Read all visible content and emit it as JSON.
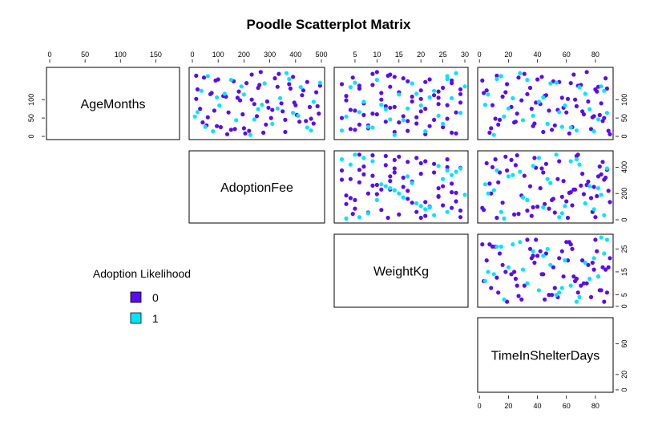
{
  "title": "Poodle Scatterplot Matrix",
  "legend": {
    "title": "Adoption Likelihood",
    "entries": [
      "0",
      "1"
    ]
  },
  "colors": {
    "0": "#5a0cf0",
    "1": "#00e5ff"
  },
  "chart_data": {
    "type": "scatter",
    "title": "Poodle Scatterplot Matrix",
    "subtype": "scatterplot-matrix (upper panels only)",
    "variables": [
      "AgeMonths",
      "AdoptionFee",
      "WeightKg",
      "TimeInShelterDays"
    ],
    "group_variable": "Adoption Likelihood",
    "groups": [
      "0",
      "1"
    ],
    "ranges": {
      "AgeMonths": [
        0,
        179
      ],
      "AdoptionFee": [
        0,
        500
      ],
      "WeightKg": [
        1,
        30
      ],
      "TimeInShelterDays": [
        1,
        90
      ]
    },
    "ticks": {
      "AgeMonths": [
        0,
        50,
        100,
        150
      ],
      "AdoptionFee": [
        0,
        100,
        200,
        300,
        400,
        500
      ],
      "WeightKg": [
        0,
        5,
        10,
        15,
        20,
        25,
        30
      ],
      "TimeInShelterDays": [
        0,
        20,
        40,
        60,
        80
      ]
    },
    "left_axis_ticks": {
      "AgeMonths": [
        0,
        50,
        100
      ],
      "AdoptionFee": [
        0,
        200,
        400
      ],
      "WeightKg": [
        0,
        5,
        15,
        25
      ],
      "TimeInShelterDays": [
        0,
        20,
        60
      ]
    },
    "legend_position": "left, lower-left empty region",
    "grid": false,
    "observations": [
      {
        "AgeMonths": 165,
        "AdoptionFee": 15,
        "WeightKg": 12.5,
        "TimeInShelterDays": 12,
        "group": "0"
      },
      {
        "AgeMonths": 160,
        "AdoptionFee": 45,
        "WeightKg": 4.5,
        "TimeInShelterDays": 27,
        "group": "0"
      },
      {
        "AgeMonths": 155,
        "AdoptionFee": 100,
        "WeightKg": 22,
        "TimeInShelterDays": 40,
        "group": "0"
      },
      {
        "AgeMonths": 150,
        "AdoptionFee": 160,
        "WeightKg": 17,
        "TimeInShelterDays": 51,
        "group": "0"
      },
      {
        "AgeMonths": 145,
        "AdoptionFee": 210,
        "WeightKg": 27,
        "TimeInShelterDays": 63,
        "group": "0"
      },
      {
        "AgeMonths": 140,
        "AdoptionFee": 260,
        "WeightKg": 9,
        "TimeInShelterDays": 70,
        "group": "0"
      },
      {
        "AgeMonths": 135,
        "AdoptionFee": 330,
        "WeightKg": 13,
        "TimeInShelterDays": 82,
        "group": "0"
      },
      {
        "AgeMonths": 130,
        "AdoptionFee": 380,
        "WeightKg": 6,
        "TimeInShelterDays": 88,
        "group": "0"
      },
      {
        "AgeMonths": 125,
        "AdoptionFee": 430,
        "WeightKg": 20,
        "TimeInShelterDays": 5,
        "group": "0"
      },
      {
        "AgeMonths": 120,
        "AdoptionFee": 480,
        "WeightKg": 15,
        "TimeInShelterDays": 18,
        "group": "0"
      },
      {
        "AgeMonths": 115,
        "AdoptionFee": 70,
        "WeightKg": 29,
        "TimeInShelterDays": 33,
        "group": "0"
      },
      {
        "AgeMonths": 110,
        "AdoptionFee": 120,
        "WeightKg": 3,
        "TimeInShelterDays": 45,
        "group": "0"
      },
      {
        "AgeMonths": 105,
        "AdoptionFee": 175,
        "WeightKg": 24,
        "TimeInShelterDays": 57,
        "group": "0"
      },
      {
        "AgeMonths": 100,
        "AdoptionFee": 230,
        "WeightKg": 11,
        "TimeInShelterDays": 66,
        "group": "0"
      },
      {
        "AgeMonths": 95,
        "AdoptionFee": 290,
        "WeightKg": 18,
        "TimeInShelterDays": 75,
        "group": "0"
      },
      {
        "AgeMonths": 90,
        "AdoptionFee": 345,
        "WeightKg": 7,
        "TimeInShelterDays": 84,
        "group": "0"
      },
      {
        "AgeMonths": 85,
        "AdoptionFee": 400,
        "WeightKg": 26,
        "TimeInShelterDays": 9,
        "group": "0"
      },
      {
        "AgeMonths": 80,
        "AdoptionFee": 455,
        "WeightKg": 14,
        "TimeInShelterDays": 22,
        "group": "0"
      },
      {
        "AgeMonths": 75,
        "AdoptionFee": 30,
        "WeightKg": 21,
        "TimeInShelterDays": 36,
        "group": "0"
      },
      {
        "AgeMonths": 70,
        "AdoptionFee": 85,
        "WeightKg": 5,
        "TimeInShelterDays": 48,
        "group": "0"
      },
      {
        "AgeMonths": 65,
        "AdoptionFee": 140,
        "WeightKg": 28,
        "TimeInShelterDays": 60,
        "group": "0"
      },
      {
        "AgeMonths": 60,
        "AdoptionFee": 195,
        "WeightKg": 10,
        "TimeInShelterDays": 72,
        "group": "0"
      },
      {
        "AgeMonths": 55,
        "AdoptionFee": 250,
        "WeightKg": 16,
        "TimeInShelterDays": 79,
        "group": "0"
      },
      {
        "AgeMonths": 50,
        "AdoptionFee": 305,
        "WeightKg": 2,
        "TimeInShelterDays": 86,
        "group": "0"
      },
      {
        "AgeMonths": 45,
        "AdoptionFee": 360,
        "WeightKg": 23,
        "TimeInShelterDays": 14,
        "group": "0"
      },
      {
        "AgeMonths": 40,
        "AdoptionFee": 415,
        "WeightKg": 12,
        "TimeInShelterDays": 25,
        "group": "0"
      },
      {
        "AgeMonths": 35,
        "AdoptionFee": 470,
        "WeightKg": 19,
        "TimeInShelterDays": 38,
        "group": "0"
      },
      {
        "AgeMonths": 30,
        "AdoptionFee": 55,
        "WeightKg": 8,
        "TimeInShelterDays": 52,
        "group": "0"
      },
      {
        "AgeMonths": 25,
        "AdoptionFee": 110,
        "WeightKg": 25,
        "TimeInShelterDays": 64,
        "group": "0"
      },
      {
        "AgeMonths": 20,
        "AdoptionFee": 165,
        "WeightKg": 4,
        "TimeInShelterDays": 77,
        "group": "0"
      },
      {
        "AgeMonths": 15,
        "AdoptionFee": 220,
        "WeightKg": 17,
        "TimeInShelterDays": 89,
        "group": "0"
      },
      {
        "AgeMonths": 10,
        "AdoptionFee": 275,
        "WeightKg": 27,
        "TimeInShelterDays": 7,
        "group": "0"
      },
      {
        "AgeMonths": 170,
        "AdoptionFee": 335,
        "WeightKg": 9,
        "TimeInShelterDays": 31,
        "group": "0"
      },
      {
        "AgeMonths": 162,
        "AdoptionFee": 390,
        "WeightKg": 14,
        "TimeInShelterDays": 43,
        "group": "0"
      },
      {
        "AgeMonths": 148,
        "AdoptionFee": 445,
        "WeightKg": 21,
        "TimeInShelterDays": 55,
        "group": "0"
      },
      {
        "AgeMonths": 138,
        "AdoptionFee": 495,
        "WeightKg": 6,
        "TimeInShelterDays": 68,
        "group": "0"
      },
      {
        "AgeMonths": 128,
        "AdoptionFee": 20,
        "WeightKg": 29,
        "TimeInShelterDays": 80,
        "group": "0"
      },
      {
        "AgeMonths": 118,
        "AdoptionFee": 75,
        "WeightKg": 11,
        "TimeInShelterDays": 3,
        "group": "0"
      },
      {
        "AgeMonths": 108,
        "AdoptionFee": 130,
        "WeightKg": 18,
        "TimeInShelterDays": 16,
        "group": "0"
      },
      {
        "AgeMonths": 98,
        "AdoptionFee": 185,
        "WeightKg": 3,
        "TimeInShelterDays": 29,
        "group": "0"
      },
      {
        "AgeMonths": 88,
        "AdoptionFee": 240,
        "WeightKg": 24,
        "TimeInShelterDays": 42,
        "group": "0"
      },
      {
        "AgeMonths": 78,
        "AdoptionFee": 295,
        "WeightKg": 13,
        "TimeInShelterDays": 58,
        "group": "0"
      },
      {
        "AgeMonths": 68,
        "AdoptionFee": 350,
        "WeightKg": 20,
        "TimeInShelterDays": 71,
        "group": "0"
      },
      {
        "AgeMonths": 58,
        "AdoptionFee": 405,
        "WeightKg": 7,
        "TimeInShelterDays": 83,
        "group": "0"
      },
      {
        "AgeMonths": 48,
        "AdoptionFee": 460,
        "WeightKg": 26,
        "TimeInShelterDays": 11,
        "group": "0"
      },
      {
        "AgeMonths": 38,
        "AdoptionFee": 40,
        "WeightKg": 15,
        "TimeInShelterDays": 24,
        "group": "0"
      },
      {
        "AgeMonths": 28,
        "AdoptionFee": 95,
        "WeightKg": 22,
        "TimeInShelterDays": 37,
        "group": "0"
      },
      {
        "AgeMonths": 18,
        "AdoptionFee": 150,
        "WeightKg": 5,
        "TimeInShelterDays": 50,
        "group": "0"
      },
      {
        "AgeMonths": 8,
        "AdoptionFee": 205,
        "WeightKg": 28,
        "TimeInShelterDays": 62,
        "group": "0"
      },
      {
        "AgeMonths": 175,
        "AdoptionFee": 265,
        "WeightKg": 10,
        "TimeInShelterDays": 74,
        "group": "0"
      },
      {
        "AgeMonths": 158,
        "AdoptionFee": 320,
        "WeightKg": 16,
        "TimeInShelterDays": 87,
        "group": "0"
      },
      {
        "AgeMonths": 142,
        "AdoptionFee": 375,
        "WeightKg": 2,
        "TimeInShelterDays": 19,
        "group": "0"
      },
      {
        "AgeMonths": 112,
        "AdoptionFee": 425,
        "WeightKg": 23,
        "TimeInShelterDays": 46,
        "group": "0"
      },
      {
        "AgeMonths": 82,
        "AdoptionFee": 485,
        "WeightKg": 12,
        "TimeInShelterDays": 67,
        "group": "0"
      },
      {
        "AgeMonths": 52,
        "AdoptionFee": 60,
        "WeightKg": 19,
        "TimeInShelterDays": 78,
        "group": "0"
      },
      {
        "AgeMonths": 22,
        "AdoptionFee": 200,
        "WeightKg": 8,
        "TimeInShelterDays": 8,
        "group": "0"
      },
      {
        "AgeMonths": 132,
        "AdoptionFee": 255,
        "WeightKg": 25,
        "TimeInShelterDays": 35,
        "group": "0"
      },
      {
        "AgeMonths": 72,
        "AdoptionFee": 310,
        "WeightKg": 4,
        "TimeInShelterDays": 54,
        "group": "0"
      },
      {
        "AgeMonths": 42,
        "AdoptionFee": 440,
        "WeightKg": 17,
        "TimeInShelterDays": 85,
        "group": "0"
      },
      {
        "AgeMonths": 152,
        "AdoptionFee": 90,
        "WeightKg": 27,
        "TimeInShelterDays": 2,
        "group": "0"
      },
      {
        "AgeMonths": 12,
        "AdoptionFee": 360,
        "WeightKg": 14,
        "TimeInShelterDays": 44,
        "group": "0"
      },
      {
        "AgeMonths": 102,
        "AdoptionFee": 15,
        "WeightKg": 20,
        "TimeInShelterDays": 61,
        "group": "0"
      },
      {
        "AgeMonths": 62,
        "AdoptionFee": 490,
        "WeightKg": 9,
        "TimeInShelterDays": 26,
        "group": "0"
      },
      {
        "AgeMonths": 122,
        "AdoptionFee": 180,
        "WeightKg": 24,
        "TimeInShelterDays": 81,
        "group": "0"
      },
      {
        "AgeMonths": 32,
        "AdoptionFee": 285,
        "WeightKg": 6,
        "TimeInShelterDays": 13,
        "group": "0"
      },
      {
        "AgeMonths": 92,
        "AdoptionFee": 395,
        "WeightKg": 29,
        "TimeInShelterDays": 39,
        "group": "0"
      },
      {
        "AgeMonths": 168,
        "AdoptionFee": 230,
        "WeightKg": 13,
        "TimeInShelterDays": 65,
        "group": "0"
      },
      {
        "AgeMonths": 6,
        "AdoptionFee": 135,
        "WeightKg": 21,
        "TimeInShelterDays": 90,
        "group": "0"
      },
      {
        "AgeMonths": 164,
        "AdoptionFee": 60,
        "WeightKg": 26,
        "TimeInShelterDays": 15,
        "group": "1"
      },
      {
        "AgeMonths": 154,
        "AdoptionFee": 150,
        "WeightKg": 10,
        "TimeInShelterDays": 33,
        "group": "1"
      },
      {
        "AgeMonths": 144,
        "AdoptionFee": 280,
        "WeightKg": 18,
        "TimeInShelterDays": 49,
        "group": "1"
      },
      {
        "AgeMonths": 134,
        "AdoptionFee": 420,
        "WeightKg": 4,
        "TimeInShelterDays": 69,
        "group": "1"
      },
      {
        "AgeMonths": 124,
        "AdoptionFee": 35,
        "WeightKg": 23,
        "TimeInShelterDays": 86,
        "group": "1"
      },
      {
        "AgeMonths": 114,
        "AdoptionFee": 200,
        "WeightKg": 15,
        "TimeInShelterDays": 6,
        "group": "1"
      },
      {
        "AgeMonths": 104,
        "AdoptionFee": 340,
        "WeightKg": 27,
        "TimeInShelterDays": 23,
        "group": "1"
      },
      {
        "AgeMonths": 94,
        "AdoptionFee": 470,
        "WeightKg": 7,
        "TimeInShelterDays": 41,
        "group": "1"
      },
      {
        "AgeMonths": 84,
        "AdoptionFee": 105,
        "WeightKg": 20,
        "TimeInShelterDays": 59,
        "group": "1"
      },
      {
        "AgeMonths": 74,
        "AdoptionFee": 255,
        "WeightKg": 12,
        "TimeInShelterDays": 76,
        "group": "1"
      },
      {
        "AgeMonths": 64,
        "AdoptionFee": 390,
        "WeightKg": 29,
        "TimeInShelterDays": 88,
        "group": "1"
      },
      {
        "AgeMonths": 54,
        "AdoptionFee": 10,
        "WeightKg": 3,
        "TimeInShelterDays": 17,
        "group": "1"
      },
      {
        "AgeMonths": 44,
        "AdoptionFee": 170,
        "WeightKg": 16,
        "TimeInShelterDays": 30,
        "group": "1"
      },
      {
        "AgeMonths": 34,
        "AdoptionFee": 310,
        "WeightKg": 25,
        "TimeInShelterDays": 47,
        "group": "1"
      },
      {
        "AgeMonths": 24,
        "AdoptionFee": 445,
        "WeightKg": 9,
        "TimeInShelterDays": 63,
        "group": "1"
      },
      {
        "AgeMonths": 14,
        "AdoptionFee": 80,
        "WeightKg": 21,
        "TimeInShelterDays": 79,
        "group": "1"
      },
      {
        "AgeMonths": 4,
        "AdoptionFee": 225,
        "WeightKg": 14,
        "TimeInShelterDays": 10,
        "group": "1"
      },
      {
        "AgeMonths": 172,
        "AdoptionFee": 365,
        "WeightKg": 28,
        "TimeInShelterDays": 28,
        "group": "1"
      },
      {
        "AgeMonths": 146,
        "AdoptionFee": 495,
        "WeightKg": 5,
        "TimeInShelterDays": 53,
        "group": "1"
      },
      {
        "AgeMonths": 116,
        "AdoptionFee": 125,
        "WeightKg": 19,
        "TimeInShelterDays": 73,
        "group": "1"
      },
      {
        "AgeMonths": 86,
        "AdoptionFee": 270,
        "WeightKg": 11,
        "TimeInShelterDays": 4,
        "group": "1"
      },
      {
        "AgeMonths": 56,
        "AdoptionFee": 410,
        "WeightKg": 24,
        "TimeInShelterDays": 37,
        "group": "1"
      },
      {
        "AgeMonths": 26,
        "AdoptionFee": 50,
        "WeightKg": 8,
        "TimeInShelterDays": 57,
        "group": "1"
      },
      {
        "AgeMonths": 136,
        "AdoptionFee": 190,
        "WeightKg": 30,
        "TimeInShelterDays": 84,
        "group": "1"
      },
      {
        "AgeMonths": 76,
        "AdoptionFee": 330,
        "WeightKg": 17,
        "TimeInShelterDays": 20,
        "group": "1"
      },
      {
        "AgeMonths": 16,
        "AdoptionFee": 460,
        "WeightKg": 2,
        "TimeInShelterDays": 67,
        "group": "1"
      },
      {
        "AgeMonths": 106,
        "AdoptionFee": 95,
        "WeightKg": 22,
        "TimeInShelterDays": 44,
        "group": "1"
      },
      {
        "AgeMonths": 46,
        "AdoptionFee": 240,
        "WeightKg": 13,
        "TimeInShelterDays": 82,
        "group": "1"
      },
      {
        "AgeMonths": 156,
        "AdoptionFee": 375,
        "WeightKg": 26,
        "TimeInShelterDays": 12,
        "group": "1"
      },
      {
        "AgeMonths": 66,
        "AdoptionFee": 20,
        "WeightKg": 6,
        "TimeInShelterDays": 55,
        "group": "1"
      }
    ]
  }
}
